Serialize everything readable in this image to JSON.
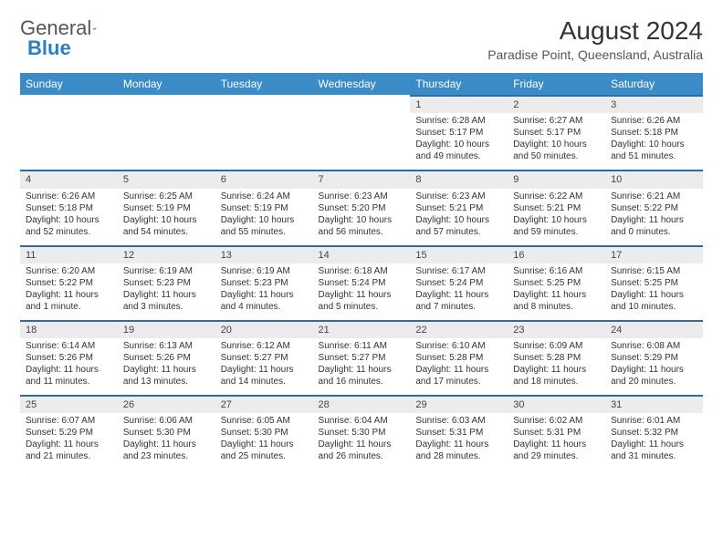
{
  "logo": {
    "text1": "General",
    "text2": "Blue"
  },
  "title": "August 2024",
  "subtitle": "Paradise Point, Queensland, Australia",
  "colors": {
    "header_bg": "#3b8cc6",
    "header_text": "#ffffff",
    "daynum_bg": "#ececec",
    "daynum_border": "#2a6ea8",
    "text": "#333333",
    "logo_blue": "#2a7fbf"
  },
  "weekdays": [
    "Sunday",
    "Monday",
    "Tuesday",
    "Wednesday",
    "Thursday",
    "Friday",
    "Saturday"
  ],
  "weeks": [
    [
      null,
      null,
      null,
      null,
      {
        "n": "1",
        "sr": "6:28 AM",
        "ss": "5:17 PM",
        "dl": "10 hours and 49 minutes."
      },
      {
        "n": "2",
        "sr": "6:27 AM",
        "ss": "5:17 PM",
        "dl": "10 hours and 50 minutes."
      },
      {
        "n": "3",
        "sr": "6:26 AM",
        "ss": "5:18 PM",
        "dl": "10 hours and 51 minutes."
      }
    ],
    [
      {
        "n": "4",
        "sr": "6:26 AM",
        "ss": "5:18 PM",
        "dl": "10 hours and 52 minutes."
      },
      {
        "n": "5",
        "sr": "6:25 AM",
        "ss": "5:19 PM",
        "dl": "10 hours and 54 minutes."
      },
      {
        "n": "6",
        "sr": "6:24 AM",
        "ss": "5:19 PM",
        "dl": "10 hours and 55 minutes."
      },
      {
        "n": "7",
        "sr": "6:23 AM",
        "ss": "5:20 PM",
        "dl": "10 hours and 56 minutes."
      },
      {
        "n": "8",
        "sr": "6:23 AM",
        "ss": "5:21 PM",
        "dl": "10 hours and 57 minutes."
      },
      {
        "n": "9",
        "sr": "6:22 AM",
        "ss": "5:21 PM",
        "dl": "10 hours and 59 minutes."
      },
      {
        "n": "10",
        "sr": "6:21 AM",
        "ss": "5:22 PM",
        "dl": "11 hours and 0 minutes."
      }
    ],
    [
      {
        "n": "11",
        "sr": "6:20 AM",
        "ss": "5:22 PM",
        "dl": "11 hours and 1 minute."
      },
      {
        "n": "12",
        "sr": "6:19 AM",
        "ss": "5:23 PM",
        "dl": "11 hours and 3 minutes."
      },
      {
        "n": "13",
        "sr": "6:19 AM",
        "ss": "5:23 PM",
        "dl": "11 hours and 4 minutes."
      },
      {
        "n": "14",
        "sr": "6:18 AM",
        "ss": "5:24 PM",
        "dl": "11 hours and 5 minutes."
      },
      {
        "n": "15",
        "sr": "6:17 AM",
        "ss": "5:24 PM",
        "dl": "11 hours and 7 minutes."
      },
      {
        "n": "16",
        "sr": "6:16 AM",
        "ss": "5:25 PM",
        "dl": "11 hours and 8 minutes."
      },
      {
        "n": "17",
        "sr": "6:15 AM",
        "ss": "5:25 PM",
        "dl": "11 hours and 10 minutes."
      }
    ],
    [
      {
        "n": "18",
        "sr": "6:14 AM",
        "ss": "5:26 PM",
        "dl": "11 hours and 11 minutes."
      },
      {
        "n": "19",
        "sr": "6:13 AM",
        "ss": "5:26 PM",
        "dl": "11 hours and 13 minutes."
      },
      {
        "n": "20",
        "sr": "6:12 AM",
        "ss": "5:27 PM",
        "dl": "11 hours and 14 minutes."
      },
      {
        "n": "21",
        "sr": "6:11 AM",
        "ss": "5:27 PM",
        "dl": "11 hours and 16 minutes."
      },
      {
        "n": "22",
        "sr": "6:10 AM",
        "ss": "5:28 PM",
        "dl": "11 hours and 17 minutes."
      },
      {
        "n": "23",
        "sr": "6:09 AM",
        "ss": "5:28 PM",
        "dl": "11 hours and 18 minutes."
      },
      {
        "n": "24",
        "sr": "6:08 AM",
        "ss": "5:29 PM",
        "dl": "11 hours and 20 minutes."
      }
    ],
    [
      {
        "n": "25",
        "sr": "6:07 AM",
        "ss": "5:29 PM",
        "dl": "11 hours and 21 minutes."
      },
      {
        "n": "26",
        "sr": "6:06 AM",
        "ss": "5:30 PM",
        "dl": "11 hours and 23 minutes."
      },
      {
        "n": "27",
        "sr": "6:05 AM",
        "ss": "5:30 PM",
        "dl": "11 hours and 25 minutes."
      },
      {
        "n": "28",
        "sr": "6:04 AM",
        "ss": "5:30 PM",
        "dl": "11 hours and 26 minutes."
      },
      {
        "n": "29",
        "sr": "6:03 AM",
        "ss": "5:31 PM",
        "dl": "11 hours and 28 minutes."
      },
      {
        "n": "30",
        "sr": "6:02 AM",
        "ss": "5:31 PM",
        "dl": "11 hours and 29 minutes."
      },
      {
        "n": "31",
        "sr": "6:01 AM",
        "ss": "5:32 PM",
        "dl": "11 hours and 31 minutes."
      }
    ]
  ],
  "labels": {
    "sunrise": "Sunrise: ",
    "sunset": "Sunset: ",
    "daylight": "Daylight: "
  }
}
